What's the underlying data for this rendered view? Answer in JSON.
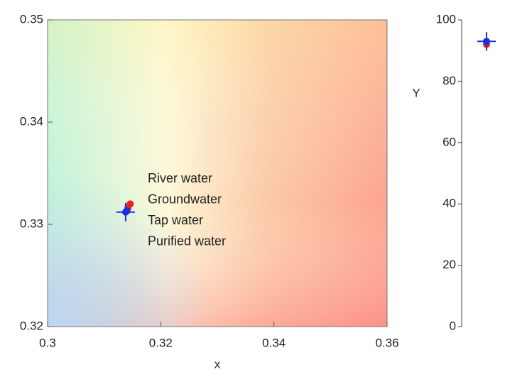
{
  "chart_data": [
    {
      "type": "scatter",
      "xlabel": "x",
      "xlim": [
        0.3,
        0.36
      ],
      "xticks": [
        0.3,
        0.32,
        0.34,
        0.36
      ],
      "ylim": [
        0.32,
        0.35
      ],
      "yticks": [
        0.32,
        0.33,
        0.34,
        0.35
      ],
      "series": [
        {
          "name": "River water",
          "color": "#e8221e",
          "x": [
            0.3146
          ],
          "values": [
            0.332
          ]
        },
        {
          "name": "Groundwater",
          "color": "#e8221e",
          "x": [
            0.3142
          ],
          "values": [
            0.3316
          ]
        },
        {
          "name": "Tap water",
          "color": "#1c2ee0",
          "x": [
            0.314
          ],
          "values": [
            0.3313
          ]
        },
        {
          "name": "Purified water",
          "color": "#1c2ee0",
          "x": [
            0.3138
          ],
          "values": [
            0.3312
          ]
        }
      ]
    },
    {
      "type": "strip",
      "ylabel": "Y",
      "ylim": [
        0,
        100
      ],
      "yticks": [
        0,
        20,
        40,
        60,
        80,
        100
      ],
      "series": [
        {
          "color": "#e8221e",
          "values": [
            92
          ]
        },
        {
          "color": "#1c2ee0",
          "values": [
            93
          ]
        }
      ]
    }
  ]
}
